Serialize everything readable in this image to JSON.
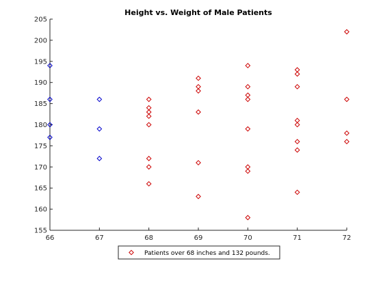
{
  "chart_data": {
    "type": "scatter",
    "title": "Height vs. Weight of Male Patients",
    "xlabel": "",
    "ylabel": "",
    "xlim": [
      66,
      72
    ],
    "ylim": [
      155,
      205
    ],
    "xticks": [
      66,
      67,
      68,
      69,
      70,
      71,
      72
    ],
    "yticks": [
      155,
      160,
      165,
      170,
      175,
      180,
      185,
      190,
      195,
      200,
      205
    ],
    "grid": false,
    "box": "left-bottom",
    "legend_position": "bottom",
    "series": [
      {
        "name": "",
        "color": "#0000cc",
        "marker": "diamond",
        "points": [
          {
            "x": 66,
            "y": 194
          },
          {
            "x": 66,
            "y": 186
          },
          {
            "x": 66,
            "y": 180
          },
          {
            "x": 66,
            "y": 177
          },
          {
            "x": 67,
            "y": 186
          },
          {
            "x": 67,
            "y": 179
          },
          {
            "x": 67,
            "y": 172
          }
        ]
      },
      {
        "name": "Patients over 68 inches and 132 pounds.",
        "color": "#cc0000",
        "marker": "diamond",
        "points": [
          {
            "x": 68,
            "y": 186
          },
          {
            "x": 68,
            "y": 184
          },
          {
            "x": 68,
            "y": 183
          },
          {
            "x": 68,
            "y": 182
          },
          {
            "x": 68,
            "y": 180
          },
          {
            "x": 68,
            "y": 172
          },
          {
            "x": 68,
            "y": 170
          },
          {
            "x": 68,
            "y": 166
          },
          {
            "x": 69,
            "y": 191
          },
          {
            "x": 69,
            "y": 189
          },
          {
            "x": 69,
            "y": 188
          },
          {
            "x": 69,
            "y": 183
          },
          {
            "x": 69,
            "y": 171
          },
          {
            "x": 69,
            "y": 163
          },
          {
            "x": 70,
            "y": 194
          },
          {
            "x": 70,
            "y": 189
          },
          {
            "x": 70,
            "y": 187
          },
          {
            "x": 70,
            "y": 186
          },
          {
            "x": 70,
            "y": 179
          },
          {
            "x": 70,
            "y": 170
          },
          {
            "x": 70,
            "y": 169
          },
          {
            "x": 70,
            "y": 158
          },
          {
            "x": 71,
            "y": 193
          },
          {
            "x": 71,
            "y": 192
          },
          {
            "x": 71,
            "y": 189
          },
          {
            "x": 71,
            "y": 181
          },
          {
            "x": 71,
            "y": 180
          },
          {
            "x": 71,
            "y": 176
          },
          {
            "x": 71,
            "y": 174
          },
          {
            "x": 71,
            "y": 164
          },
          {
            "x": 72,
            "y": 202
          },
          {
            "x": 72,
            "y": 186
          },
          {
            "x": 72,
            "y": 178
          },
          {
            "x": 72,
            "y": 176
          }
        ]
      }
    ],
    "legend": [
      "Patients over 68 inches and 132 pounds."
    ]
  }
}
